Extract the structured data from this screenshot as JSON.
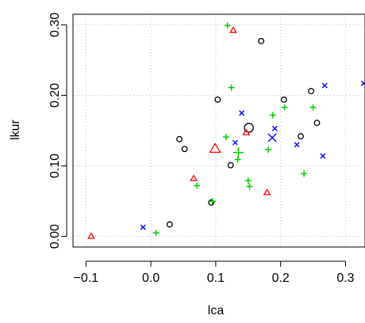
{
  "chart_data": {
    "type": "scatter",
    "title": "",
    "xlabel": "lca",
    "ylabel": "lkur",
    "xlim": [
      -0.12,
      0.33
    ],
    "ylim": [
      -0.015,
      0.315
    ],
    "x_ticks": [
      -0.1,
      0.0,
      0.1,
      0.2,
      0.3
    ],
    "x_tick_labels": [
      "−0.1",
      "0.0",
      "0.1",
      "0.2",
      "0.3"
    ],
    "y_ticks": [
      0.0,
      0.1,
      0.2,
      0.3
    ],
    "y_tick_labels": [
      "0.00",
      "0.10",
      "0.20",
      "0.30"
    ],
    "grid": true,
    "legend": "none",
    "series": [
      {
        "marker": "circle",
        "color": "#000000",
        "points": [
          {
            "x": 0.17,
            "y": 0.277
          },
          {
            "x": 0.103,
            "y": 0.194
          },
          {
            "x": 0.205,
            "y": 0.194
          },
          {
            "x": 0.247,
            "y": 0.206
          },
          {
            "x": 0.256,
            "y": 0.161
          },
          {
            "x": 0.231,
            "y": 0.142
          },
          {
            "x": 0.044,
            "y": 0.138
          },
          {
            "x": 0.052,
            "y": 0.124
          },
          {
            "x": 0.123,
            "y": 0.101
          },
          {
            "x": 0.093,
            "y": 0.048
          },
          {
            "x": 0.029,
            "y": 0.017
          }
        ],
        "centroid": {
          "x": 0.151,
          "y": 0.154
        }
      },
      {
        "marker": "triangle",
        "color": "#ff0000",
        "points": [
          {
            "x": 0.127,
            "y": 0.292
          },
          {
            "x": 0.147,
            "y": 0.147
          },
          {
            "x": 0.066,
            "y": 0.082
          },
          {
            "x": 0.179,
            "y": 0.062
          },
          {
            "x": -0.092,
            "y": 0.0
          }
        ],
        "centroid": {
          "x": 0.099,
          "y": 0.124
        }
      },
      {
        "marker": "plus",
        "color": "#00cd00",
        "points": [
          {
            "x": 0.118,
            "y": 0.299
          },
          {
            "x": 0.124,
            "y": 0.211
          },
          {
            "x": 0.206,
            "y": 0.183
          },
          {
            "x": 0.25,
            "y": 0.183
          },
          {
            "x": 0.188,
            "y": 0.172
          },
          {
            "x": 0.116,
            "y": 0.141
          },
          {
            "x": 0.181,
            "y": 0.123
          },
          {
            "x": 0.134,
            "y": 0.109
          },
          {
            "x": 0.236,
            "y": 0.089
          },
          {
            "x": 0.15,
            "y": 0.079
          },
          {
            "x": 0.152,
            "y": 0.071
          },
          {
            "x": 0.071,
            "y": 0.072
          },
          {
            "x": 0.095,
            "y": 0.05
          },
          {
            "x": 0.008,
            "y": 0.005
          }
        ],
        "centroid": {
          "x": 0.135,
          "y": 0.119
        }
      },
      {
        "marker": "cross",
        "color": "#0000ff",
        "points": [
          {
            "x": 0.328,
            "y": 0.217
          },
          {
            "x": 0.268,
            "y": 0.214
          },
          {
            "x": 0.14,
            "y": 0.175
          },
          {
            "x": 0.191,
            "y": 0.153
          },
          {
            "x": 0.225,
            "y": 0.13
          },
          {
            "x": 0.13,
            "y": 0.133
          },
          {
            "x": 0.265,
            "y": 0.114
          },
          {
            "x": -0.012,
            "y": 0.013
          }
        ],
        "centroid": {
          "x": 0.187,
          "y": 0.14
        }
      }
    ]
  }
}
